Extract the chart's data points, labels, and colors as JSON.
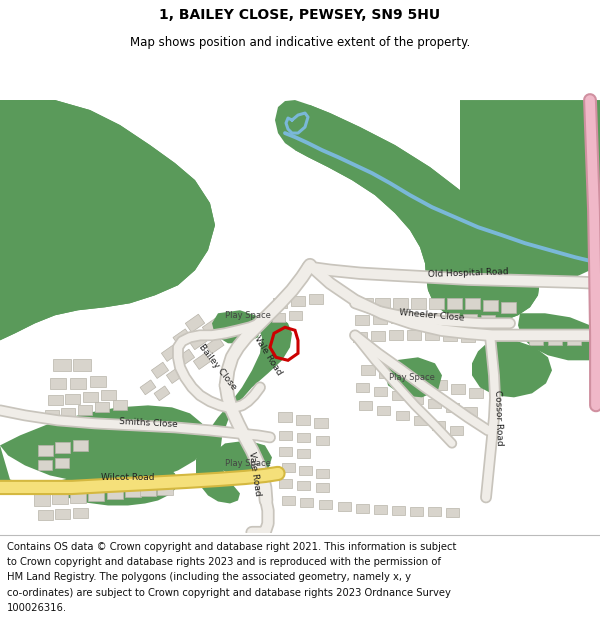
{
  "title": "1, BAILEY CLOSE, PEWSEY, SN9 5HU",
  "subtitle": "Map shows position and indicative extent of the property.",
  "footer_lines": [
    "Contains OS data © Crown copyright and database right 2021. This information is subject",
    "to Crown copyright and database rights 2023 and is reproduced with the permission of",
    "HM Land Registry. The polygons (including the associated geometry, namely x, y",
    "co-ordinates) are subject to Crown copyright and database rights 2023 Ordnance Survey",
    "100026316."
  ],
  "map_bg": "#ffffff",
  "road_color": "#f0ede8",
  "road_stroke": "#c8c4bc",
  "green_color": "#5a9a5a",
  "building_color": "#d8d4cc",
  "building_stroke": "#b8b4aa",
  "river_color": "#7ab8d8",
  "highlight_color": "#cc0000",
  "yellow_road_outer": "#d4b840",
  "yellow_road_inner": "#f5e07a",
  "pink_road_outer": "#d090a0",
  "pink_road_inner": "#f0b8c8",
  "title_fontsize": 10,
  "subtitle_fontsize": 8.5,
  "footer_fontsize": 7.2,
  "label_fontsize": 6.5,
  "playspace_fontsize": 6.0
}
